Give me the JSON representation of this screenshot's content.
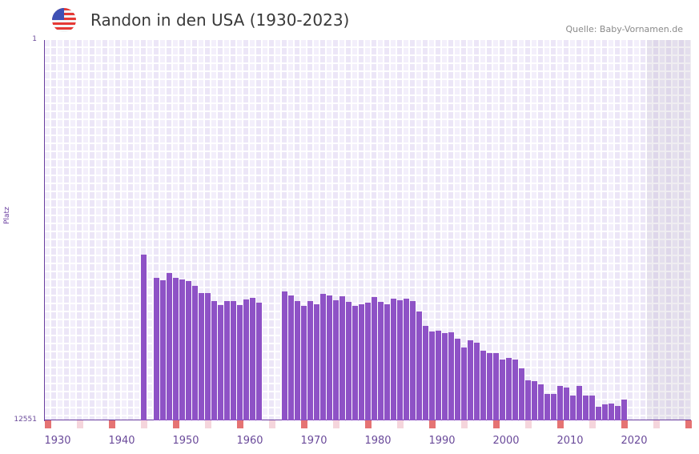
{
  "header": {
    "title": "Randon in den USA (1930-2023)",
    "source": "Quelle: Baby-Vornamen.de",
    "flag_icon": "us-flag-icon"
  },
  "colors": {
    "bar": "#8e52c6",
    "decade_marker": "#e57373",
    "half_decade_marker": "#f5d5dc",
    "axis": "#6a3fa0"
  },
  "chart_data": {
    "type": "bar",
    "title": "Randon in den USA (1930-2023)",
    "xlabel": "",
    "ylabel": "Platz",
    "y_inverted": true,
    "ylim": [
      1,
      12551
    ],
    "y_ticks": [
      "1",
      "12551"
    ],
    "xlim": [
      1930,
      2030
    ],
    "x_ticks": [
      "1930",
      "1940",
      "1950",
      "1960",
      "1970",
      "1980",
      "1990",
      "2000",
      "2010",
      "2020"
    ],
    "future_from": 2024,
    "start_year": 1930,
    "values": [
      null,
      null,
      null,
      null,
      null,
      null,
      null,
      null,
      null,
      null,
      null,
      null,
      null,
      null,
      null,
      7080,
      null,
      7850,
      7930,
      7690,
      7850,
      7900,
      7950,
      8110,
      8350,
      8350,
      8610,
      8750,
      8610,
      8610,
      8750,
      8560,
      8510,
      8670,
      null,
      null,
      null,
      8300,
      8430,
      8610,
      8770,
      8610,
      8720,
      8380,
      8430,
      8590,
      8460,
      8640,
      8770,
      8720,
      8670,
      8480,
      8640,
      8720,
      8540,
      8590,
      8540,
      8610,
      8960,
      9430,
      9620,
      9590,
      9670,
      9650,
      9860,
      10150,
      9910,
      9990,
      10250,
      10330,
      10330,
      10540,
      10490,
      10540,
      10830,
      11230,
      11260,
      11360,
      11680,
      11680,
      11420,
      11470,
      11730,
      11420,
      11730,
      11730,
      12100,
      12020,
      12000,
      12080,
      11860
    ]
  }
}
